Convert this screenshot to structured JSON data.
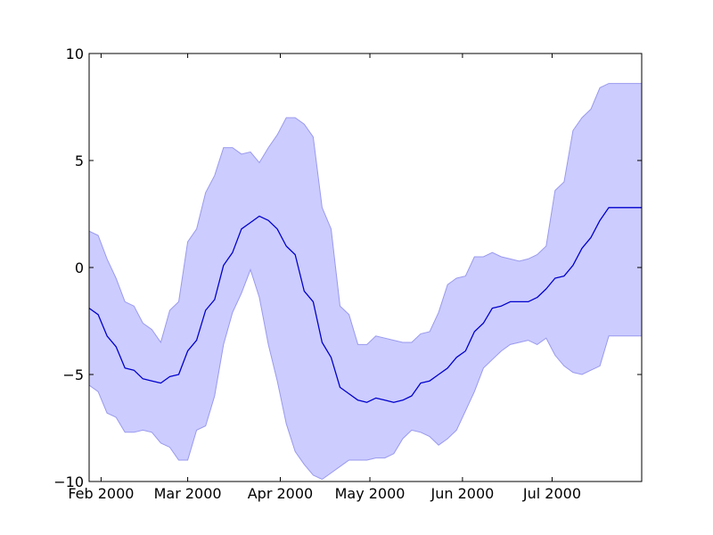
{
  "chart_data": {
    "type": "area",
    "title": "",
    "xlabel": "",
    "ylabel": "",
    "xlim": [
      "2000-01-28",
      "2000-07-31"
    ],
    "ylim": [
      -10,
      10
    ],
    "grid": false,
    "x_ticks": [
      {
        "date": "2000-02-01",
        "label": "Feb 2000"
      },
      {
        "date": "2000-03-01",
        "label": "Mar 2000"
      },
      {
        "date": "2000-04-01",
        "label": "Apr 2000"
      },
      {
        "date": "2000-05-01",
        "label": "May 2000"
      },
      {
        "date": "2000-06-01",
        "label": "Jun 2000"
      },
      {
        "date": "2000-07-01",
        "label": "Jul 2000"
      }
    ],
    "y_ticks": [
      {
        "value": 10,
        "label": "10"
      },
      {
        "value": 5,
        "label": "5"
      },
      {
        "value": 0,
        "label": "0"
      },
      {
        "value": -5,
        "label": "−5"
      },
      {
        "value": -10,
        "label": "−10"
      }
    ],
    "colors": {
      "line": "#0000cc",
      "band_fill": "#ccccff",
      "band_edge": "#9999ee",
      "axes": "#000000"
    },
    "series": [
      {
        "x": [
          "2000-01-28",
          "2000-01-31",
          "2000-02-03",
          "2000-02-06",
          "2000-02-09",
          "2000-02-12",
          "2000-02-15",
          "2000-02-18",
          "2000-02-21",
          "2000-02-24",
          "2000-02-27",
          "2000-03-01",
          "2000-03-04",
          "2000-03-07",
          "2000-03-10",
          "2000-03-13",
          "2000-03-16",
          "2000-03-19",
          "2000-03-22",
          "2000-03-25",
          "2000-03-28",
          "2000-03-31",
          "2000-04-03",
          "2000-04-06",
          "2000-04-09",
          "2000-04-12",
          "2000-04-15",
          "2000-04-18",
          "2000-04-21",
          "2000-04-24",
          "2000-04-27",
          "2000-04-30",
          "2000-05-03",
          "2000-05-06",
          "2000-05-09",
          "2000-05-12",
          "2000-05-15",
          "2000-05-18",
          "2000-05-21",
          "2000-05-24",
          "2000-05-27",
          "2000-05-30",
          "2000-06-02",
          "2000-06-05",
          "2000-06-08",
          "2000-06-11",
          "2000-06-14",
          "2000-06-17",
          "2000-06-20",
          "2000-06-23",
          "2000-06-26",
          "2000-06-29",
          "2000-07-02",
          "2000-07-05",
          "2000-07-08",
          "2000-07-11",
          "2000-07-14",
          "2000-07-17",
          "2000-07-20",
          "2000-07-23",
          "2000-07-26",
          "2000-07-29",
          "2000-07-31"
        ],
        "mean": [
          -1.9,
          -2.2,
          -3.2,
          -3.7,
          -4.7,
          -4.8,
          -5.2,
          -5.3,
          -5.4,
          -5.1,
          -5.0,
          -3.9,
          -3.4,
          -2.0,
          -1.5,
          0.1,
          0.7,
          1.8,
          2.1,
          2.4,
          2.2,
          1.8,
          1.0,
          0.6,
          -1.1,
          -1.6,
          -3.5,
          -4.2,
          -5.6,
          -5.9,
          -6.2,
          -6.3,
          -6.1,
          -6.2,
          -6.3,
          -6.2,
          -6.0,
          -5.4,
          -5.3,
          -5.0,
          -4.7,
          -4.2,
          -3.9,
          -3.0,
          -2.6,
          -1.9,
          -1.8,
          -1.6,
          -1.6,
          -1.6,
          -1.4,
          -1.0,
          -0.5,
          -0.4,
          0.1,
          0.9,
          1.4,
          2.2,
          2.8,
          2.8,
          2.8,
          2.8,
          2.8
        ],
        "upper": [
          1.7,
          1.5,
          0.4,
          -0.5,
          -1.6,
          -1.8,
          -2.6,
          -2.9,
          -3.5,
          -2.0,
          -1.6,
          1.2,
          1.8,
          3.5,
          4.3,
          5.6,
          5.6,
          5.3,
          5.4,
          4.9,
          5.6,
          6.2,
          7.0,
          7.0,
          6.7,
          6.1,
          2.8,
          1.8,
          -1.8,
          -2.2,
          -3.6,
          -3.6,
          -3.2,
          -3.3,
          -3.4,
          -3.5,
          -3.5,
          -3.1,
          -3.0,
          -2.1,
          -0.8,
          -0.5,
          -0.4,
          0.5,
          0.5,
          0.7,
          0.5,
          0.4,
          0.3,
          0.4,
          0.6,
          1.0,
          3.6,
          4.0,
          6.4,
          7.0,
          7.4,
          8.4,
          8.6,
          8.6,
          8.6,
          8.6,
          8.6
        ],
        "lower": [
          -5.5,
          -5.8,
          -6.8,
          -7.0,
          -7.7,
          -7.7,
          -7.6,
          -7.7,
          -8.2,
          -8.4,
          -9.0,
          -9.0,
          -7.6,
          -7.4,
          -6.0,
          -3.6,
          -2.1,
          -1.2,
          -0.1,
          -1.4,
          -3.6,
          -5.3,
          -7.3,
          -8.6,
          -9.2,
          -9.7,
          -9.9,
          -9.6,
          -9.3,
          -9.0,
          -9.0,
          -9.0,
          -8.9,
          -8.9,
          -8.7,
          -8.0,
          -7.6,
          -7.7,
          -7.9,
          -8.3,
          -8.0,
          -7.6,
          -6.7,
          -5.8,
          -4.7,
          -4.3,
          -3.9,
          -3.6,
          -3.5,
          -3.4,
          -3.6,
          -3.3,
          -4.1,
          -4.6,
          -4.9,
          -5.0,
          -4.8,
          -4.6,
          -3.2,
          -3.2,
          -3.2,
          -3.2,
          -3.2
        ]
      }
    ]
  }
}
